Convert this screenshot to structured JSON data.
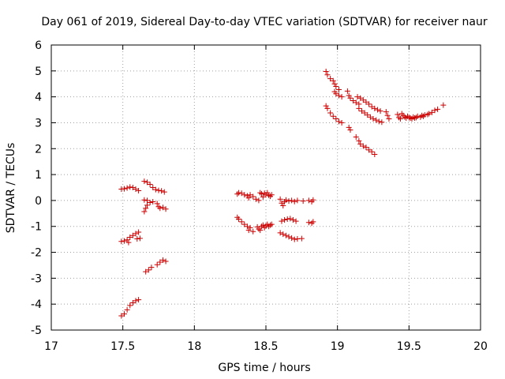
{
  "chart_data": {
    "type": "scatter",
    "title": "Day 061 of 2019, Sidereal Day-to-day VTEC variation (SDTVAR) for receiver naur",
    "xlabel": "GPS time / hours",
    "ylabel": "SDTVAR / TECUs",
    "xlim": [
      17,
      20
    ],
    "ylim": [
      -5,
      6
    ],
    "xticks": [
      "17",
      "17.5",
      "18",
      "18.5",
      "19",
      "19.5",
      "20"
    ],
    "yticks": [
      "-5",
      "-4",
      "-3",
      "-2",
      "-1",
      "0",
      "1",
      "2",
      "3",
      "4",
      "5",
      "6"
    ],
    "grid": true,
    "marker": "plus",
    "color": "#cc0000",
    "series": [
      {
        "name": "sdtvar",
        "points": [
          [
            17.49,
            0.44
          ],
          [
            17.51,
            0.45
          ],
          [
            17.53,
            0.48
          ],
          [
            17.55,
            0.52
          ],
          [
            17.57,
            0.5
          ],
          [
            17.59,
            0.44
          ],
          [
            17.61,
            0.38
          ],
          [
            17.65,
            0.74
          ],
          [
            17.67,
            0.7
          ],
          [
            17.69,
            0.62
          ],
          [
            17.71,
            0.5
          ],
          [
            17.73,
            0.42
          ],
          [
            17.75,
            0.39
          ],
          [
            17.77,
            0.37
          ],
          [
            17.79,
            0.33
          ],
          [
            17.65,
            -0.43
          ],
          [
            17.66,
            -0.3
          ],
          [
            17.67,
            -0.18
          ],
          [
            17.69,
            -0.08
          ],
          [
            17.71,
            -0.05
          ],
          [
            17.65,
            0.02
          ],
          [
            17.67,
            0.0
          ],
          [
            17.74,
            -0.12
          ],
          [
            17.75,
            -0.24
          ],
          [
            17.76,
            -0.3
          ],
          [
            17.78,
            -0.27
          ],
          [
            17.8,
            -0.33
          ],
          [
            17.49,
            -1.58
          ],
          [
            17.51,
            -1.56
          ],
          [
            17.53,
            -1.52
          ],
          [
            17.54,
            -1.62
          ],
          [
            17.55,
            -1.42
          ],
          [
            17.57,
            -1.35
          ],
          [
            17.59,
            -1.28
          ],
          [
            17.61,
            -1.22
          ],
          [
            17.6,
            -1.48
          ],
          [
            17.62,
            -1.46
          ],
          [
            17.49,
            -4.45
          ],
          [
            17.51,
            -4.38
          ],
          [
            17.53,
            -4.22
          ],
          [
            17.55,
            -4.05
          ],
          [
            17.57,
            -3.95
          ],
          [
            17.59,
            -3.87
          ],
          [
            17.61,
            -3.83
          ],
          [
            17.66,
            -2.75
          ],
          [
            17.68,
            -2.68
          ],
          [
            17.7,
            -2.58
          ],
          [
            17.74,
            -2.48
          ],
          [
            17.76,
            -2.38
          ],
          [
            17.78,
            -2.3
          ],
          [
            17.8,
            -2.35
          ],
          [
            18.3,
            0.25
          ],
          [
            18.31,
            0.3
          ],
          [
            18.33,
            0.28
          ],
          [
            18.35,
            0.22
          ],
          [
            18.37,
            0.18
          ],
          [
            18.38,
            0.1
          ],
          [
            18.39,
            0.22
          ],
          [
            18.41,
            0.15
          ],
          [
            18.43,
            0.05
          ],
          [
            18.45,
            0.0
          ],
          [
            18.46,
            0.3
          ],
          [
            18.47,
            0.26
          ],
          [
            18.48,
            0.14
          ],
          [
            18.49,
            0.28
          ],
          [
            18.5,
            0.22
          ],
          [
            18.51,
            0.3
          ],
          [
            18.52,
            0.2
          ],
          [
            18.53,
            0.16
          ],
          [
            18.54,
            0.22
          ],
          [
            18.6,
            0.05
          ],
          [
            18.61,
            -0.1
          ],
          [
            18.62,
            -0.2
          ],
          [
            18.63,
            -0.05
          ],
          [
            18.64,
            0.02
          ],
          [
            18.66,
            -0.02
          ],
          [
            18.68,
            0.0
          ],
          [
            18.7,
            -0.04
          ],
          [
            18.72,
            0.0
          ],
          [
            18.76,
            -0.02
          ],
          [
            18.8,
            0.0
          ],
          [
            18.82,
            -0.05
          ],
          [
            18.83,
            0.02
          ],
          [
            18.3,
            -0.65
          ],
          [
            18.31,
            -0.72
          ],
          [
            18.33,
            -0.82
          ],
          [
            18.35,
            -0.92
          ],
          [
            18.37,
            -1.0
          ],
          [
            18.38,
            -1.15
          ],
          [
            18.39,
            -1.05
          ],
          [
            18.41,
            -1.2
          ],
          [
            18.44,
            -1.02
          ],
          [
            18.45,
            -1.1
          ],
          [
            18.46,
            -1.15
          ],
          [
            18.47,
            -1.0
          ],
          [
            18.48,
            -0.95
          ],
          [
            18.49,
            -1.05
          ],
          [
            18.5,
            -0.98
          ],
          [
            18.51,
            -0.92
          ],
          [
            18.52,
            -1.0
          ],
          [
            18.53,
            -0.95
          ],
          [
            18.54,
            -0.92
          ],
          [
            18.61,
            -0.8
          ],
          [
            18.63,
            -0.75
          ],
          [
            18.65,
            -0.72
          ],
          [
            18.67,
            -0.7
          ],
          [
            18.69,
            -0.75
          ],
          [
            18.71,
            -0.8
          ],
          [
            18.8,
            -0.85
          ],
          [
            18.82,
            -0.88
          ],
          [
            18.83,
            -0.82
          ],
          [
            18.6,
            -1.25
          ],
          [
            18.62,
            -1.3
          ],
          [
            18.64,
            -1.35
          ],
          [
            18.66,
            -1.4
          ],
          [
            18.68,
            -1.45
          ],
          [
            18.7,
            -1.5
          ],
          [
            18.72,
            -1.48
          ],
          [
            18.75,
            -1.47
          ],
          [
            18.92,
            4.98
          ],
          [
            18.93,
            4.85
          ],
          [
            18.95,
            4.7
          ],
          [
            18.97,
            4.62
          ],
          [
            18.98,
            4.5
          ],
          [
            18.99,
            4.4
          ],
          [
            19.01,
            4.28
          ],
          [
            18.98,
            4.2
          ],
          [
            18.99,
            4.12
          ],
          [
            19.01,
            4.05
          ],
          [
            19.03,
            4.0
          ],
          [
            19.07,
            4.22
          ],
          [
            19.08,
            4.05
          ],
          [
            19.09,
            3.95
          ],
          [
            19.11,
            3.85
          ],
          [
            19.13,
            3.78
          ],
          [
            19.15,
            3.72
          ],
          [
            19.14,
            4.0
          ],
          [
            19.16,
            3.95
          ],
          [
            19.18,
            3.88
          ],
          [
            19.2,
            3.8
          ],
          [
            19.22,
            3.72
          ],
          [
            19.24,
            3.62
          ],
          [
            19.26,
            3.55
          ],
          [
            19.28,
            3.5
          ],
          [
            19.3,
            3.45
          ],
          [
            19.15,
            3.55
          ],
          [
            19.17,
            3.45
          ],
          [
            19.19,
            3.38
          ],
          [
            19.21,
            3.3
          ],
          [
            19.23,
            3.22
          ],
          [
            19.25,
            3.15
          ],
          [
            19.27,
            3.1
          ],
          [
            19.29,
            3.05
          ],
          [
            19.31,
            3.02
          ],
          [
            19.34,
            3.42
          ],
          [
            19.35,
            3.28
          ],
          [
            19.36,
            3.15
          ],
          [
            18.92,
            3.65
          ],
          [
            18.93,
            3.55
          ],
          [
            18.95,
            3.38
          ],
          [
            18.97,
            3.25
          ],
          [
            18.99,
            3.15
          ],
          [
            19.01,
            3.05
          ],
          [
            19.03,
            3.0
          ],
          [
            19.08,
            2.82
          ],
          [
            19.09,
            2.72
          ],
          [
            19.13,
            2.45
          ],
          [
            19.15,
            2.3
          ],
          [
            19.16,
            2.18
          ],
          [
            19.18,
            2.1
          ],
          [
            19.2,
            2.05
          ],
          [
            19.22,
            1.95
          ],
          [
            19.24,
            1.88
          ],
          [
            19.26,
            1.78
          ],
          [
            19.42,
            3.32
          ],
          [
            19.43,
            3.2
          ],
          [
            19.44,
            3.15
          ],
          [
            19.45,
            3.35
          ],
          [
            19.46,
            3.28
          ],
          [
            19.47,
            3.22
          ],
          [
            19.48,
            3.18
          ],
          [
            19.49,
            3.25
          ],
          [
            19.5,
            3.2
          ],
          [
            19.51,
            3.18
          ],
          [
            19.52,
            3.15
          ],
          [
            19.53,
            3.22
          ],
          [
            19.54,
            3.18
          ],
          [
            19.55,
            3.2
          ],
          [
            19.56,
            3.25
          ],
          [
            19.58,
            3.22
          ],
          [
            19.59,
            3.28
          ],
          [
            19.6,
            3.25
          ],
          [
            19.61,
            3.3
          ],
          [
            19.63,
            3.32
          ],
          [
            19.64,
            3.35
          ],
          [
            19.66,
            3.4
          ],
          [
            19.68,
            3.48
          ],
          [
            19.7,
            3.52
          ],
          [
            19.74,
            3.68
          ]
        ]
      }
    ]
  }
}
